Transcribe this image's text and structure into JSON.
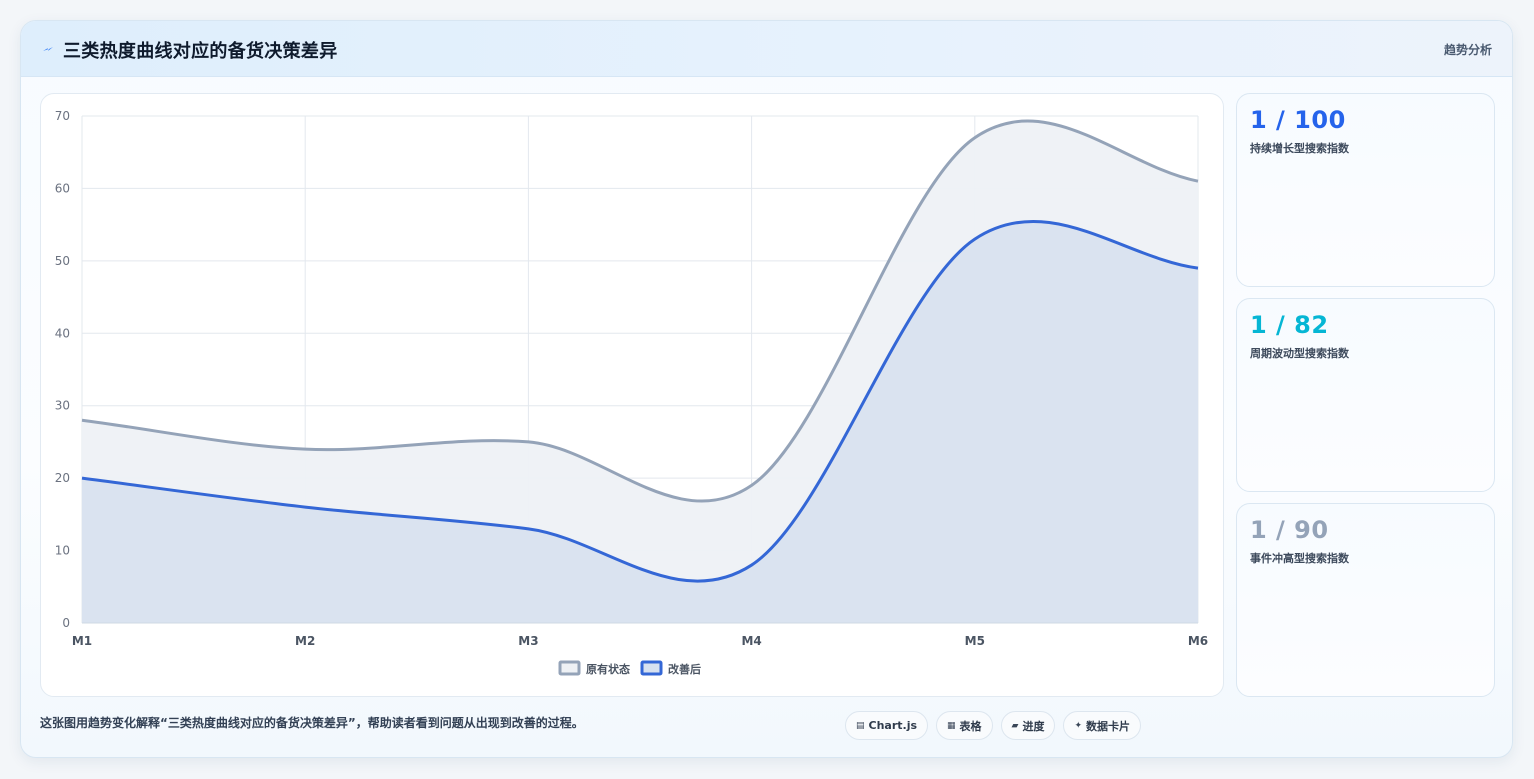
{
  "header": {
    "title": "三类热度曲线对应的备货决策差异",
    "tag": "趋势分析",
    "icon": "lightning-icon"
  },
  "stats": [
    {
      "value": "1 / 100",
      "label": "持续增长型搜索指数",
      "color": "#2563eb"
    },
    {
      "value": "1 / 82",
      "label": "周期波动型搜索指数",
      "color": "#06b6d4"
    },
    {
      "value": "1 / 90",
      "label": "事件冲高型搜索指数",
      "color": "#94a3b8"
    }
  ],
  "footer": {
    "text": "这张图用趋势变化解释“三类热度曲线对应的备货决策差异”，帮助读者看到问题从出现到改善的过程。",
    "chips": [
      {
        "icon": "chart-icon",
        "glyph": "▤",
        "label": "Chart.js"
      },
      {
        "icon": "table-icon",
        "glyph": "▦",
        "label": "表格"
      },
      {
        "icon": "progress-icon",
        "glyph": "▰",
        "label": "进度"
      },
      {
        "icon": "card-icon",
        "glyph": "✦",
        "label": "数据卡片"
      }
    ]
  },
  "chart_data": {
    "type": "area",
    "categories": [
      "M1",
      "M2",
      "M3",
      "M4",
      "M5",
      "M6"
    ],
    "series": [
      {
        "name": "原有状态",
        "values": [
          28,
          24,
          25,
          19,
          67,
          61
        ],
        "color": "#94a3b8",
        "fill": "#eef1f5"
      },
      {
        "name": "改善后",
        "values": [
          20,
          16,
          13,
          8,
          53,
          49
        ],
        "color": "#3467d6",
        "fill": "#d7e1f0"
      }
    ],
    "ylim": [
      0,
      70
    ],
    "yticks": [
      0,
      10,
      20,
      30,
      40,
      50,
      60,
      70
    ],
    "grid": true,
    "legend": "bottom"
  }
}
